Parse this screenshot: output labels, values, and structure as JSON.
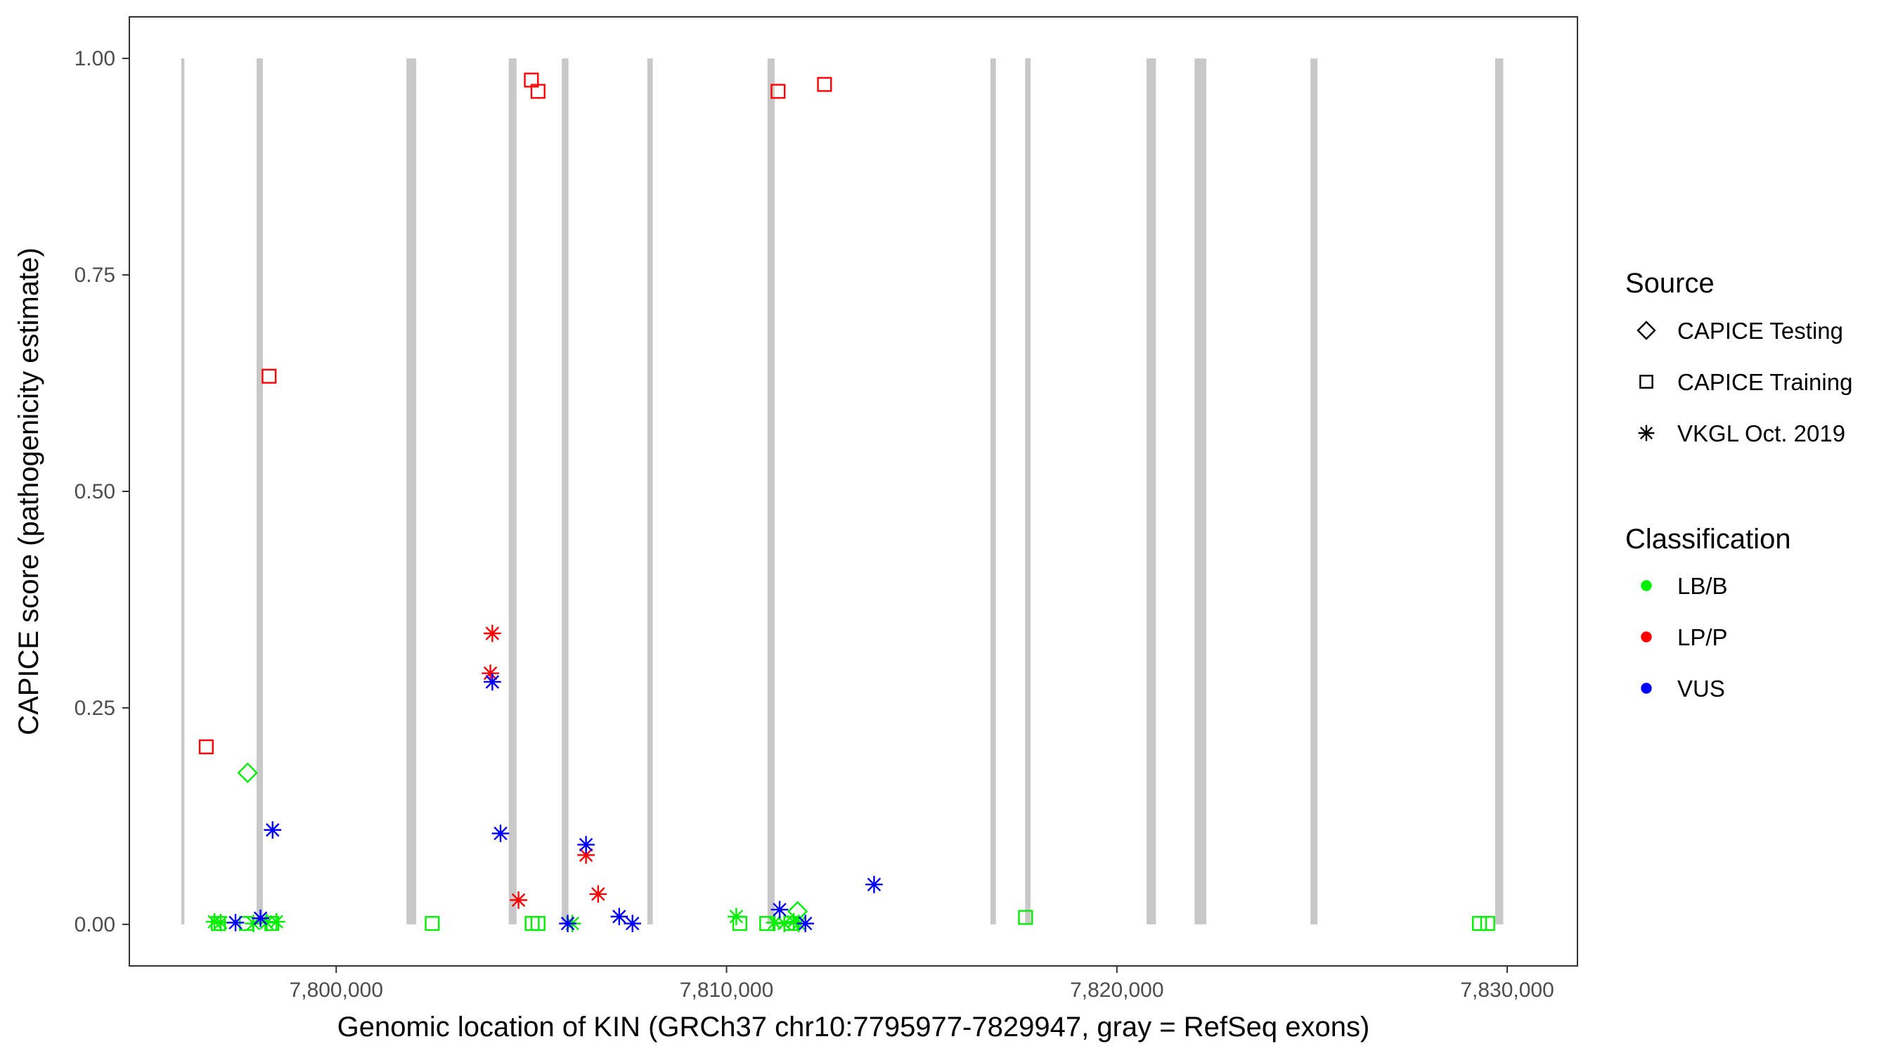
{
  "chart_data": {
    "type": "scatter",
    "xlabel": "Genomic location of KIN (GRCh37 chr10:7795977-7829947, gray = RefSeq exons)",
    "ylabel": "CAPICE score (pathogenicity estimate)",
    "xlim": [
      7794700,
      7831800
    ],
    "ylim": [
      -0.048,
      1.048
    ],
    "x_ticks": [
      7800000,
      7810000,
      7820000,
      7830000
    ],
    "x_tick_labels": [
      "7,800,000",
      "7,810,000",
      "7,820,000",
      "7,830,000"
    ],
    "y_ticks": [
      0,
      0.25,
      0.5,
      0.75,
      1
    ],
    "y_tick_labels": [
      "0.00",
      "0.25",
      "0.50",
      "0.75",
      "1.00"
    ],
    "grid": false,
    "exon_color": "#c8c8c8",
    "exons": [
      {
        "start": 7796030,
        "end": 7796110
      },
      {
        "start": 7797960,
        "end": 7798120
      },
      {
        "start": 7801800,
        "end": 7802050
      },
      {
        "start": 7804420,
        "end": 7804620
      },
      {
        "start": 7805780,
        "end": 7805950
      },
      {
        "start": 7807970,
        "end": 7808110
      },
      {
        "start": 7811050,
        "end": 7811230
      },
      {
        "start": 7816760,
        "end": 7816900
      },
      {
        "start": 7817650,
        "end": 7817790
      },
      {
        "start": 7820760,
        "end": 7821000
      },
      {
        "start": 7821990,
        "end": 7822290
      },
      {
        "start": 7824960,
        "end": 7825140
      },
      {
        "start": 7829690,
        "end": 7829900
      }
    ],
    "legend": {
      "placement": "right",
      "source_title": "Source",
      "source_items": [
        {
          "label": "CAPICE Testing",
          "shape": "diamond"
        },
        {
          "label": "CAPICE Training",
          "shape": "square"
        },
        {
          "label": "VKGL Oct. 2019",
          "shape": "asterisk"
        }
      ],
      "class_title": "Classification",
      "class_items": [
        {
          "label": "LB/B",
          "color": "#00ee00"
        },
        {
          "label": "LP/P",
          "color": "#ff0000"
        },
        {
          "label": "VUS",
          "color": "#0000ff"
        }
      ]
    },
    "series": [
      {
        "source": "CAPICE Testing",
        "classification": "LB/B",
        "shape": "diamond",
        "color": "#00ee00",
        "points": [
          {
            "x": 7797730,
            "y": 0.175
          },
          {
            "x": 7811820,
            "y": 0.015
          }
        ]
      },
      {
        "source": "CAPICE Training",
        "classification": "LB/B",
        "shape": "square",
        "color": "#00ee00",
        "points": [
          {
            "x": 7796980,
            "y": 0.001
          },
          {
            "x": 7797700,
            "y": 0.001
          },
          {
            "x": 7798350,
            "y": 0.001
          },
          {
            "x": 7802460,
            "y": 0.001
          },
          {
            "x": 7805020,
            "y": 0.001
          },
          {
            "x": 7805170,
            "y": 0.001
          },
          {
            "x": 7810340,
            "y": 0.001
          },
          {
            "x": 7811030,
            "y": 0.001
          },
          {
            "x": 7811650,
            "y": 0.001
          },
          {
            "x": 7817660,
            "y": 0.008
          },
          {
            "x": 7829290,
            "y": 0.001
          },
          {
            "x": 7829500,
            "y": 0.001
          }
        ]
      },
      {
        "source": "CAPICE Training",
        "classification": "LP/P",
        "shape": "square",
        "color": "#ff0000",
        "points": [
          {
            "x": 7796670,
            "y": 0.205
          },
          {
            "x": 7798280,
            "y": 0.633
          },
          {
            "x": 7805000,
            "y": 0.975
          },
          {
            "x": 7805170,
            "y": 0.962
          },
          {
            "x": 7811320,
            "y": 0.962
          },
          {
            "x": 7812510,
            "y": 0.97
          }
        ]
      },
      {
        "source": "VKGL Oct. 2019",
        "classification": "LB/B",
        "shape": "asterisk",
        "color": "#00ee00",
        "points": [
          {
            "x": 7796880,
            "y": 0.003
          },
          {
            "x": 7797040,
            "y": 0.002
          },
          {
            "x": 7797880,
            "y": 0.001
          },
          {
            "x": 7798220,
            "y": 0.002
          },
          {
            "x": 7798470,
            "y": 0.003
          },
          {
            "x": 7806050,
            "y": 0.001
          },
          {
            "x": 7810250,
            "y": 0.009
          },
          {
            "x": 7811230,
            "y": 0.002
          },
          {
            "x": 7811480,
            "y": 0.001
          },
          {
            "x": 7811720,
            "y": 0.003
          },
          {
            "x": 7811850,
            "y": 0.001
          }
        ]
      },
      {
        "source": "VKGL Oct. 2019",
        "classification": "LP/P",
        "shape": "asterisk",
        "color": "#ff0000",
        "points": [
          {
            "x": 7804000,
            "y": 0.336
          },
          {
            "x": 7803950,
            "y": 0.29
          },
          {
            "x": 7804670,
            "y": 0.028
          },
          {
            "x": 7806400,
            "y": 0.08
          },
          {
            "x": 7806710,
            "y": 0.035
          }
        ]
      },
      {
        "source": "VKGL Oct. 2019",
        "classification": "VUS",
        "shape": "asterisk",
        "color": "#0000ff",
        "points": [
          {
            "x": 7797420,
            "y": 0.002
          },
          {
            "x": 7798060,
            "y": 0.007
          },
          {
            "x": 7798370,
            "y": 0.109
          },
          {
            "x": 7804000,
            "y": 0.28
          },
          {
            "x": 7804210,
            "y": 0.105
          },
          {
            "x": 7805930,
            "y": 0.001
          },
          {
            "x": 7806400,
            "y": 0.092
          },
          {
            "x": 7807250,
            "y": 0.009
          },
          {
            "x": 7807590,
            "y": 0.001
          },
          {
            "x": 7811360,
            "y": 0.017
          },
          {
            "x": 7812020,
            "y": 0.001
          },
          {
            "x": 7813780,
            "y": 0.046
          }
        ]
      }
    ]
  }
}
